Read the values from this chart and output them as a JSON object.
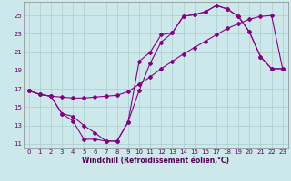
{
  "xlabel": "Windchill (Refroidissement éolien,°C)",
  "background_color": "#cce8ea",
  "grid_color": "#aacccc",
  "line_color": "#880088",
  "xlim": [
    -0.5,
    23.5
  ],
  "ylim": [
    10.5,
    26.5
  ],
  "yticks": [
    11,
    13,
    15,
    17,
    19,
    21,
    23,
    25
  ],
  "xticks": [
    0,
    1,
    2,
    3,
    4,
    5,
    6,
    7,
    8,
    9,
    10,
    11,
    12,
    13,
    14,
    15,
    16,
    17,
    18,
    19,
    20,
    21,
    22,
    23
  ],
  "line1_x": [
    0,
    1,
    2,
    3,
    4,
    5,
    6,
    7,
    8,
    9,
    10,
    11,
    12,
    13,
    14,
    15,
    16,
    17,
    18,
    19,
    20,
    21,
    22,
    23
  ],
  "line1_y": [
    16.8,
    16.4,
    16.2,
    16.1,
    16.0,
    16.0,
    16.1,
    16.2,
    16.3,
    16.7,
    17.5,
    18.3,
    19.2,
    20.0,
    20.8,
    21.5,
    22.2,
    22.9,
    23.6,
    24.1,
    24.6,
    24.9,
    25.0,
    19.2
  ],
  "line2_x": [
    0,
    1,
    2,
    3,
    4,
    5,
    6,
    7,
    8,
    9,
    10,
    11,
    12,
    13,
    14,
    15,
    16,
    17,
    18,
    19,
    20,
    21,
    22,
    23
  ],
  "line2_y": [
    16.8,
    16.4,
    16.2,
    14.3,
    13.5,
    11.5,
    11.5,
    11.3,
    11.3,
    13.4,
    20.0,
    21.0,
    22.9,
    23.1,
    24.9,
    25.1,
    25.4,
    26.1,
    25.7,
    24.9,
    23.2,
    20.5,
    19.2,
    19.2
  ],
  "line3_x": [
    0,
    1,
    2,
    3,
    4,
    5,
    6,
    7,
    8,
    9,
    10,
    11,
    12,
    13,
    14,
    15,
    16,
    17,
    18,
    19,
    20,
    21,
    22,
    23
  ],
  "line3_y": [
    16.8,
    16.4,
    16.2,
    14.3,
    14.0,
    13.0,
    12.2,
    11.3,
    11.3,
    13.4,
    16.8,
    19.8,
    22.1,
    23.1,
    24.9,
    25.1,
    25.4,
    26.1,
    25.7,
    24.9,
    23.2,
    20.5,
    19.2,
    19.2
  ],
  "marker": "D",
  "markersize": 2.0,
  "linewidth": 0.8,
  "tick_fontsize": 5.0,
  "label_fontsize": 5.5
}
